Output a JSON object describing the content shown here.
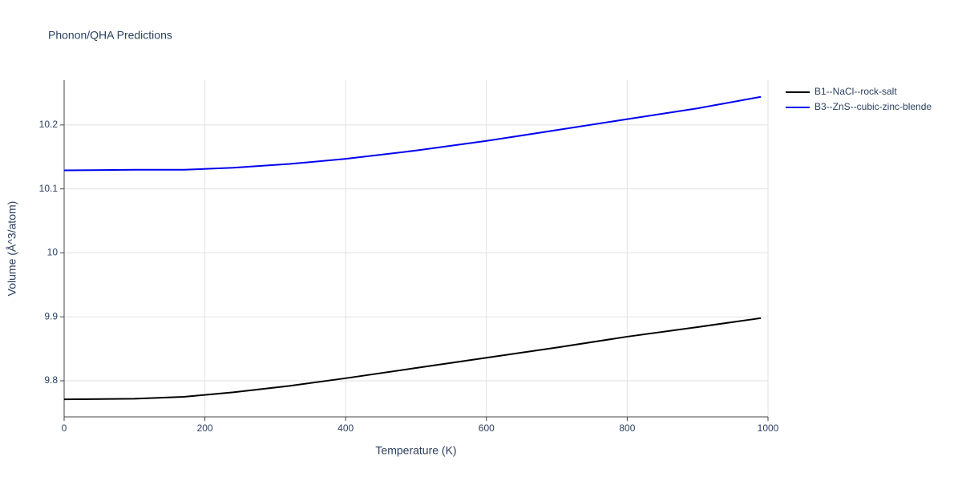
{
  "chart_data": {
    "type": "line",
    "title": "Phonon/QHA Predictions",
    "x_label": "Temperature (K)",
    "y_label": "Volume (Å^3/atom)",
    "x": [
      0,
      100,
      170,
      240,
      320,
      400,
      500,
      600,
      700,
      800,
      900,
      990
    ],
    "series": [
      {
        "name": "B1--NaCl--rock-salt",
        "color": "#000000",
        "values": [
          9.771,
          9.772,
          9.775,
          9.782,
          9.792,
          9.804,
          9.82,
          9.836,
          9.852,
          9.869,
          9.884,
          9.898
        ]
      },
      {
        "name": "B3--ZnS--cubic-zinc-blende",
        "color": "#0000ee",
        "values": [
          10.129,
          10.13,
          10.13,
          10.133,
          10.139,
          10.147,
          10.16,
          10.175,
          10.192,
          10.209,
          10.226,
          10.244
        ]
      }
    ],
    "xlim": [
      0,
      1000
    ],
    "xticks": [
      0,
      200,
      400,
      600,
      800,
      1000
    ],
    "ylim": [
      9.7436,
      10.27
    ],
    "yticks": [
      9.8,
      9.9,
      10,
      10.1,
      10.2
    ],
    "grid": true,
    "legend": "right"
  }
}
